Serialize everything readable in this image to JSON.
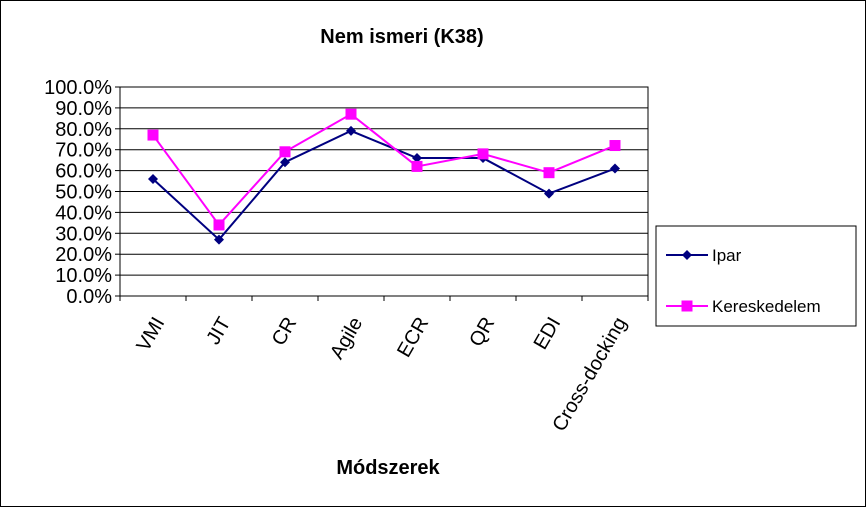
{
  "chart_data": {
    "type": "line",
    "title": "Nem ismeri (K38)",
    "xlabel": "Módszerek",
    "ylabel": "",
    "categories": [
      "VMI",
      "JIT",
      "CR",
      "Agile",
      "ECR",
      "QR",
      "EDI",
      "Cross-docking"
    ],
    "ylim": [
      0,
      100
    ],
    "y_ticks": [
      "0.0%",
      "10.0%",
      "20.0%",
      "30.0%",
      "40.0%",
      "50.0%",
      "60.0%",
      "70.0%",
      "80.0%",
      "90.0%",
      "100.0%"
    ],
    "grid": true,
    "legend_position": "right",
    "series": [
      {
        "name": "Ipar",
        "color": "#000080",
        "marker": "diamond",
        "values": [
          56,
          27,
          64,
          79,
          66,
          66,
          49,
          61
        ]
      },
      {
        "name": "Kereskedelem",
        "color": "#FF00FF",
        "marker": "square",
        "values": [
          77,
          34,
          69,
          87,
          62,
          68,
          59,
          72
        ]
      }
    ]
  }
}
